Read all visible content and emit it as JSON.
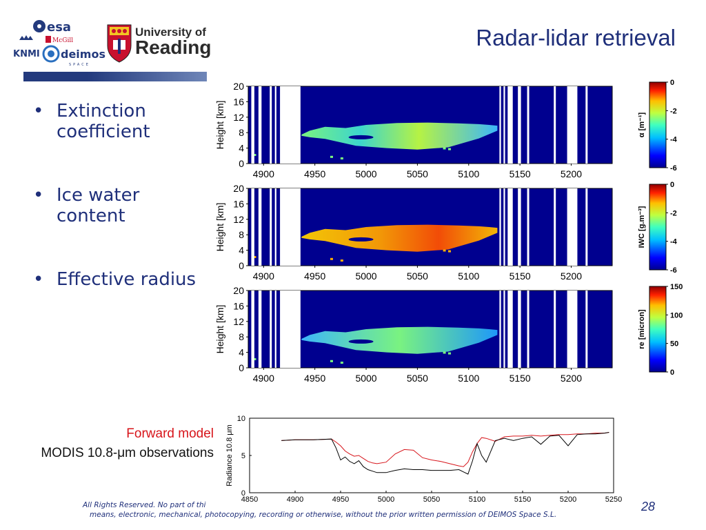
{
  "slide": {
    "title": "Radar-lidar retrieval",
    "page_number": "28",
    "bullets": [
      "Extinction coefficient",
      "Ice water content",
      "Effective radius"
    ],
    "footer_line1": "All Rights Reserved. No part of thi",
    "footer_line2": "means, electronic, mechanical, photocopying, recording or otherwise, without the prior written permission of DEIMOS Space S.L.",
    "forward_model_label": "Forward model",
    "modis_label": "MODIS 10.8-μm observations"
  },
  "logos": {
    "esa": "esa",
    "mcgill": "McGill",
    "knmi": "KNMI",
    "deimos": "deimos",
    "deimos_sub": "SPACE",
    "reading_line1": "University of",
    "reading_line2": "Reading"
  },
  "colors": {
    "title": "#1f2f7a",
    "forward_model": "#d7141a",
    "observations": "#000000",
    "panel_background": "#00008f"
  },
  "panels": [
    {
      "ylabel": "Height [km]",
      "yticks": [
        "20",
        "16",
        "12",
        "8",
        "4",
        "0"
      ],
      "xticks": [
        "4900",
        "4950",
        "5000",
        "5050",
        "5100",
        "5150",
        "5200"
      ],
      "colorbar_label": "α [m⁻¹]",
      "colorbar_ticks": [
        "0",
        "-2",
        "-4",
        "-6"
      ],
      "variable": "Extinction coefficient"
    },
    {
      "ylabel": "Height [km]",
      "yticks": [
        "20",
        "16",
        "12",
        "8",
        "4",
        "0"
      ],
      "xticks": [
        "4900",
        "4950",
        "5000",
        "5050",
        "5100",
        "5150",
        "5200"
      ],
      "colorbar_label": "IWC [g.m⁻³]",
      "colorbar_ticks": [
        "0",
        "-2",
        "-4",
        "-6"
      ],
      "variable": "Ice water content"
    },
    {
      "ylabel": "Height [km]",
      "yticks": [
        "20",
        "16",
        "12",
        "8",
        "4",
        "0"
      ],
      "xticks": [
        "4900",
        "4950",
        "5000",
        "5050",
        "5100",
        "5150",
        "5200"
      ],
      "colorbar_label": "re [micron]",
      "colorbar_ticks": [
        "150",
        "100",
        "50",
        "0"
      ],
      "variable": "Effective radius"
    }
  ],
  "chart_data": {
    "type": "line",
    "ylabel": "Radiance 10.8 μm",
    "xlabel": "",
    "xlim": [
      4850,
      5250
    ],
    "ylim": [
      0,
      10
    ],
    "xticks": [
      4850,
      4900,
      4950,
      5000,
      5050,
      5100,
      5150,
      5200,
      5250
    ],
    "yticks": [
      0,
      5,
      10
    ],
    "series": [
      {
        "name": "Forward model",
        "color": "#d7141a",
        "x": [
          4885,
          4900,
          4920,
          4940,
          4945,
          4950,
          4955,
          4960,
          4965,
          4970,
          4975,
          4980,
          4985,
          4990,
          5000,
          5010,
          5020,
          5030,
          5040,
          5050,
          5060,
          5070,
          5080,
          5085,
          5090,
          5095,
          5100,
          5105,
          5110,
          5120,
          5130,
          5140,
          5150,
          5160,
          5170,
          5180,
          5190,
          5200,
          5210,
          5220,
          5230,
          5240,
          5245
        ],
        "y": [
          7.0,
          7.1,
          7.1,
          7.2,
          6.8,
          6.3,
          5.6,
          5.2,
          4.9,
          5.0,
          4.6,
          4.2,
          4.0,
          3.9,
          4.1,
          5.2,
          5.8,
          5.7,
          4.7,
          4.4,
          4.2,
          3.9,
          3.6,
          3.5,
          4.1,
          5.5,
          6.6,
          7.4,
          7.3,
          6.9,
          7.5,
          7.6,
          7.6,
          7.7,
          7.6,
          7.7,
          7.8,
          7.8,
          7.9,
          7.9,
          8.0,
          8.0,
          8.1
        ]
      },
      {
        "name": "MODIS 10.8-μm observations",
        "color": "#000000",
        "x": [
          4885,
          4900,
          4920,
          4940,
          4945,
          4950,
          4955,
          4960,
          4965,
          4970,
          4975,
          4980,
          4985,
          4990,
          5000,
          5010,
          5020,
          5030,
          5040,
          5050,
          5060,
          5070,
          5080,
          5085,
          5090,
          5095,
          5100,
          5105,
          5110,
          5120,
          5130,
          5140,
          5150,
          5160,
          5170,
          5180,
          5190,
          5200,
          5210,
          5220,
          5230,
          5240,
          5245
        ],
        "y": [
          7.0,
          7.1,
          7.1,
          7.2,
          6.0,
          4.4,
          4.8,
          4.2,
          3.9,
          4.3,
          3.5,
          3.1,
          2.9,
          2.7,
          2.7,
          3.0,
          3.2,
          3.1,
          3.1,
          3.0,
          3.0,
          3.0,
          3.1,
          2.8,
          2.5,
          4.3,
          6.6,
          5.0,
          4.1,
          7.0,
          7.3,
          7.0,
          7.3,
          7.5,
          6.5,
          7.6,
          7.7,
          6.3,
          7.8,
          7.9,
          7.9,
          8.0,
          8.1
        ]
      }
    ]
  }
}
